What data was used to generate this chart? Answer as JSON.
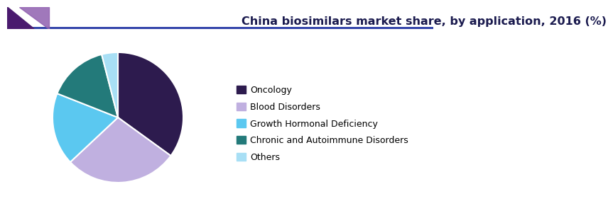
{
  "title": "China biosimilars market share, by application, 2016 (%)",
  "labels": [
    "Oncology",
    "Blood Disorders",
    "Growth Hormonal Deficiency",
    "Chronic and Autoimmune Disorders",
    "Others"
  ],
  "values": [
    35,
    28,
    18,
    15,
    4
  ],
  "colors": [
    "#2d1b4e",
    "#c0b0e0",
    "#5bc8f0",
    "#237a7a",
    "#a8dff5"
  ],
  "startangle": 90,
  "title_fontsize": 11.5,
  "legend_fontsize": 9,
  "background_color": "#ffffff",
  "wedge_edge_color": "#ffffff",
  "wedge_linewidth": 1.5,
  "header_line_color": "#3344aa",
  "header_tri_dark": "#4a1a6e",
  "header_tri_light": "#9060b0"
}
